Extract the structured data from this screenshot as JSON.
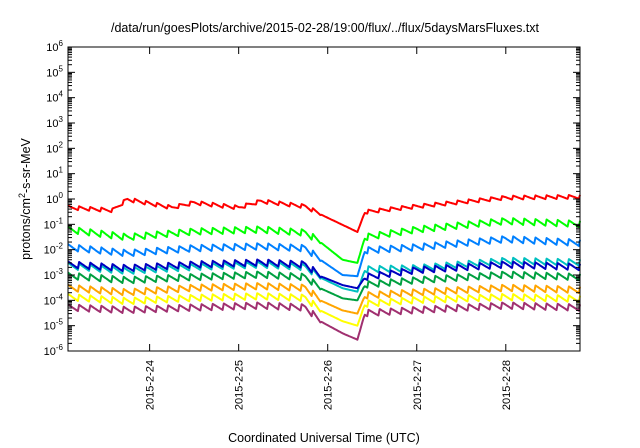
{
  "chart_data": {
    "type": "line",
    "title": "/data/run/goesPlots/archive/2015-02-28/19:00/flux/../flux/5daysMarsFluxes.txt",
    "xlabel": "Coordinated Universal Time (UTC)",
    "ylabel": {
      "main": "protons/cm",
      "sup": "2",
      "rest": "-s-sr-MeV"
    },
    "y_scale": "log",
    "y_range": [
      1e-06,
      1000000.0
    ],
    "y_ticks": [
      {
        "exp": "-6"
      },
      {
        "exp": "-5"
      },
      {
        "exp": "-4"
      },
      {
        "exp": "-3"
      },
      {
        "exp": "-2"
      },
      {
        "exp": "-1"
      },
      {
        "exp": "0"
      },
      {
        "exp": "1"
      },
      {
        "exp": "2"
      },
      {
        "exp": "3"
      },
      {
        "exp": "4"
      },
      {
        "exp": "5"
      },
      {
        "exp": "6"
      }
    ],
    "y_tick_base": "10",
    "x_range": [
      "2015-02-23 02:00",
      "2015-02-28 20:00"
    ],
    "x_ticks": [
      {
        "label": "2015-2-24",
        "date": "2015-02-24"
      },
      {
        "label": "2015-2-25",
        "date": "2015-02-25"
      },
      {
        "label": "2015-2-26",
        "date": "2015-02-26"
      },
      {
        "label": "2015-2-27",
        "date": "2015-02-27"
      },
      {
        "label": "2015-2-28",
        "date": "2015-02-28"
      }
    ],
    "grid": false,
    "legend": "none",
    "series": [
      {
        "color": "#ff0000",
        "baseline": [
          [
            "2015-02-23 02:00",
            0.45
          ],
          [
            "2015-02-23 14:00",
            0.35
          ],
          [
            "2015-02-23 18:00",
            0.95
          ],
          [
            "2015-02-24 06:00",
            0.45
          ],
          [
            "2015-02-24 12:00",
            0.7
          ],
          [
            "2015-02-25 00:00",
            0.45
          ],
          [
            "2015-02-25 06:00",
            0.8
          ],
          [
            "2015-02-25 18:00",
            0.5
          ],
          [
            "2015-02-25 22:00",
            0.25
          ],
          [
            "2015-02-26 08:00",
            0.05
          ],
          [
            "2015-02-26 10:00",
            0.3
          ],
          [
            "2015-02-27 00:00",
            0.5
          ],
          [
            "2015-02-28 00:00",
            1.1
          ],
          [
            "2015-02-28 20:00",
            1.2
          ]
        ]
      },
      {
        "color": "#00ff00",
        "baseline": [
          [
            "2015-02-23 02:00",
            0.06
          ],
          [
            "2015-02-23 18:00",
            0.03
          ],
          [
            "2015-02-24 12:00",
            0.05
          ],
          [
            "2015-02-25 06:00",
            0.06
          ],
          [
            "2015-02-25 18:00",
            0.045
          ],
          [
            "2015-02-25 22:00",
            0.02
          ],
          [
            "2015-02-26 04:00",
            0.004
          ],
          [
            "2015-02-26 08:00",
            0.003
          ],
          [
            "2015-02-26 10:00",
            0.03
          ],
          [
            "2015-02-27 00:00",
            0.06
          ],
          [
            "2015-02-28 00:00",
            0.13
          ],
          [
            "2015-02-28 20:00",
            0.1
          ]
        ]
      },
      {
        "color": "#0080ff",
        "baseline": [
          [
            "2015-02-23 02:00",
            0.012
          ],
          [
            "2015-02-23 18:00",
            0.007
          ],
          [
            "2015-02-24 12:00",
            0.011
          ],
          [
            "2015-02-25 06:00",
            0.013
          ],
          [
            "2015-02-25 18:00",
            0.011
          ],
          [
            "2015-02-25 22:00",
            0.004
          ],
          [
            "2015-02-26 04:00",
            0.001
          ],
          [
            "2015-02-26 08:00",
            0.0009
          ],
          [
            "2015-02-26 10:00",
            0.009
          ],
          [
            "2015-02-27 00:00",
            0.012
          ],
          [
            "2015-02-28 00:00",
            0.025
          ],
          [
            "2015-02-28 20:00",
            0.018
          ]
        ]
      },
      {
        "color": "#00c0c0",
        "baseline": [
          [
            "2015-02-23 02:00",
            0.0022
          ],
          [
            "2015-02-23 18:00",
            0.0014
          ],
          [
            "2015-02-24 12:00",
            0.002
          ],
          [
            "2015-02-25 06:00",
            0.0025
          ],
          [
            "2015-02-25 18:00",
            0.002
          ],
          [
            "2015-02-25 22:00",
            0.0008
          ],
          [
            "2015-02-26 04:00",
            0.0003
          ],
          [
            "2015-02-26 08:00",
            0.00022
          ],
          [
            "2015-02-26 10:00",
            0.0016
          ],
          [
            "2015-02-27 00:00",
            0.0018
          ],
          [
            "2015-02-28 00:00",
            0.0035
          ],
          [
            "2015-02-28 20:00",
            0.003
          ]
        ]
      },
      {
        "color": "#0000c0",
        "baseline": [
          [
            "2015-02-23 02:00",
            0.0025
          ],
          [
            "2015-02-23 18:00",
            0.0018
          ],
          [
            "2015-02-24 12:00",
            0.0025
          ],
          [
            "2015-02-25 06:00",
            0.003
          ],
          [
            "2015-02-25 18:00",
            0.0025
          ],
          [
            "2015-02-25 22:00",
            0.0009
          ],
          [
            "2015-02-26 04:00",
            0.0004
          ],
          [
            "2015-02-26 08:00",
            0.0003
          ],
          [
            "2015-02-26 10:00",
            0.0008
          ],
          [
            "2015-02-27 00:00",
            0.0015
          ],
          [
            "2015-02-28 00:00",
            0.0025
          ],
          [
            "2015-02-28 20:00",
            0.002
          ]
        ]
      },
      {
        "color": "#00a040",
        "baseline": [
          [
            "2015-02-23 02:00",
            0.0009
          ],
          [
            "2015-02-23 18:00",
            0.0006
          ],
          [
            "2015-02-24 12:00",
            0.0008
          ],
          [
            "2015-02-25 06:00",
            0.001
          ],
          [
            "2015-02-25 18:00",
            0.0008
          ],
          [
            "2015-02-25 22:00",
            0.0003
          ],
          [
            "2015-02-26 04:00",
            0.00012
          ],
          [
            "2015-02-26 08:00",
            0.0001
          ],
          [
            "2015-02-26 10:00",
            0.0004
          ],
          [
            "2015-02-27 00:00",
            0.0006
          ],
          [
            "2015-02-28 00:00",
            0.001
          ],
          [
            "2015-02-28 20:00",
            0.0008
          ]
        ]
      },
      {
        "color": "#ffa500",
        "baseline": [
          [
            "2015-02-23 02:00",
            0.0003
          ],
          [
            "2015-02-23 18:00",
            0.0002
          ],
          [
            "2015-02-24 12:00",
            0.0003
          ],
          [
            "2015-02-25 06:00",
            0.00035
          ],
          [
            "2015-02-25 18:00",
            0.0003
          ],
          [
            "2015-02-25 22:00",
            0.0001
          ],
          [
            "2015-02-26 04:00",
            4e-05
          ],
          [
            "2015-02-26 08:00",
            3e-05
          ],
          [
            "2015-02-26 10:00",
            0.00015
          ],
          [
            "2015-02-27 00:00",
            0.0002
          ],
          [
            "2015-02-28 00:00",
            0.0003
          ],
          [
            "2015-02-28 20:00",
            0.00025
          ]
        ]
      },
      {
        "color": "#ffff00",
        "baseline": [
          [
            "2015-02-23 02:00",
            0.00013
          ],
          [
            "2015-02-23 18:00",
            9e-05
          ],
          [
            "2015-02-24 12:00",
            0.00012
          ],
          [
            "2015-02-25 06:00",
            0.00014
          ],
          [
            "2015-02-25 18:00",
            0.00012
          ],
          [
            "2015-02-25 22:00",
            4e-05
          ],
          [
            "2015-02-26 04:00",
            1.5e-05
          ],
          [
            "2015-02-26 08:00",
            1e-05
          ],
          [
            "2015-02-26 10:00",
            7e-05
          ],
          [
            "2015-02-27 00:00",
            0.0001
          ],
          [
            "2015-02-28 00:00",
            0.00013
          ],
          [
            "2015-02-28 20:00",
            0.00011
          ]
        ]
      },
      {
        "color": "#a03070",
        "baseline": [
          [
            "2015-02-23 02:00",
            5e-05
          ],
          [
            "2015-02-23 18:00",
            4e-05
          ],
          [
            "2015-02-24 12:00",
            5e-05
          ],
          [
            "2015-02-25 06:00",
            6e-05
          ],
          [
            "2015-02-25 18:00",
            5e-05
          ],
          [
            "2015-02-25 22:00",
            1.5e-05
          ],
          [
            "2015-02-26 04:00",
            5e-06
          ],
          [
            "2015-02-26 08:00",
            2.8e-06
          ],
          [
            "2015-02-26 10:00",
            3e-05
          ],
          [
            "2015-02-27 00:00",
            4e-05
          ],
          [
            "2015-02-28 00:00",
            6e-05
          ],
          [
            "2015-02-28 20:00",
            5e-05
          ]
        ]
      }
    ],
    "sawtooth": {
      "period_hours": 3,
      "amplitude_decades": 0.28,
      "smooth_window": [
        "2015-02-25 22:00",
        "2015-02-26 10:00"
      ]
    }
  }
}
